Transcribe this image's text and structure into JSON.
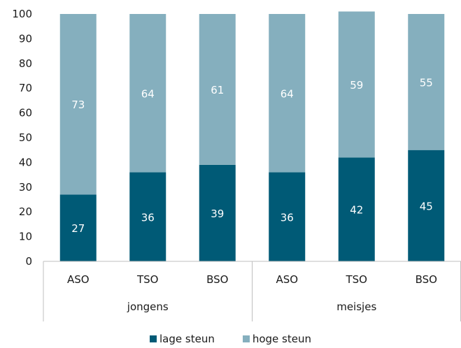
{
  "chart_data": {
    "type": "bar",
    "stacked": true,
    "categories": [
      "ASO",
      "TSO",
      "BSO",
      "ASO",
      "TSO",
      "BSO"
    ],
    "groups": [
      {
        "label": "jongens",
        "categories": [
          "ASO",
          "TSO",
          "BSO"
        ]
      },
      {
        "label": "meisjes",
        "categories": [
          "ASO",
          "TSO",
          "BSO"
        ]
      }
    ],
    "series": [
      {
        "name": "lage steun",
        "values": [
          27,
          36,
          39,
          36,
          42,
          45
        ],
        "color": "#005A76"
      },
      {
        "name": "hoge steun",
        "values": [
          73,
          64,
          61,
          64,
          59,
          55
        ],
        "color": "#85AFBE"
      }
    ],
    "ylim": [
      0,
      100
    ],
    "yticks": [
      "0",
      "10",
      "20",
      "30",
      "40",
      "50",
      "60",
      "70",
      "80",
      "90",
      "100"
    ],
    "legend_position": "bottom",
    "grid": false
  }
}
